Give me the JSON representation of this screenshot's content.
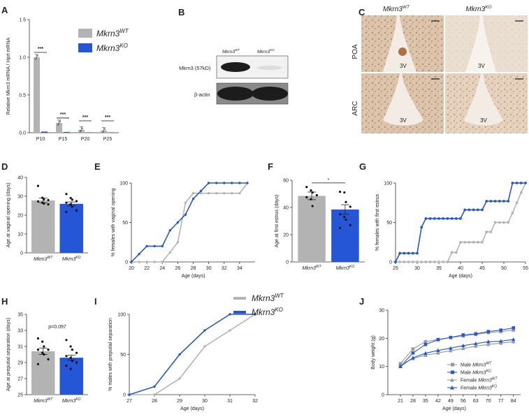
{
  "colors": {
    "wt": "#b3b3b3",
    "ko": "#2456d6",
    "wtMarker": "#9a9a9a",
    "blot": "#1c1c1c",
    "ihcBg": "#e9dccd",
    "stain": "#a86a3a"
  },
  "panels": {
    "A": "A",
    "B": "B",
    "C": "C",
    "D": "D",
    "E": "E",
    "F": "F",
    "G": "G",
    "H": "H",
    "I": "I",
    "J": "J"
  },
  "legend": {
    "wt_base": "Mkrn3",
    "wt_sup": "WT",
    "ko_base": "Mkrn3",
    "ko_sup": "KO"
  },
  "blot": {
    "lane_wt_base": "Mkrn3",
    "lane_wt_sup": "WT",
    "lane_ko_base": "Mkrn3",
    "lane_ko_sup": "KO",
    "band1": "Mkrn3 (57kD)",
    "band2": "β-actin"
  },
  "ihc": {
    "col1_base": "Mkrn3",
    "col1_sup": "WT",
    "col2_base": "Mkrn3",
    "col2_sup": "KO",
    "row1": "POA",
    "row2": "ARC",
    "ventricle": "3V"
  },
  "annotations": {
    "sig3": "***",
    "sig1": "*",
    "pval": "p=0.097"
  },
  "chart_data": [
    {
      "id": "A",
      "type": "bar",
      "title": "",
      "ylabel": "Relative Mkrn3 mRNA / Hprt mRNA",
      "xlabel": "",
      "categories": [
        "P10",
        "P15",
        "P20",
        "P25"
      ],
      "ylim": [
        0,
        1.5
      ],
      "yticks": [
        "0.0",
        "0.5",
        "1.0",
        "1.5"
      ],
      "ytick_values": [
        0,
        0.5,
        1,
        1.5
      ],
      "series": [
        {
          "name": "Mkrn3WT",
          "values": [
            1.0,
            0.13,
            0.04,
            0.03
          ]
        },
        {
          "name": "Mkrn3KO",
          "values": [
            0.015,
            0.01,
            0.005,
            0.005
          ]
        }
      ],
      "significance": [
        "***",
        "***",
        "***",
        "***"
      ]
    },
    {
      "id": "D",
      "type": "bar",
      "ylabel": "Age at vaginal opening (days)",
      "xlabel": "",
      "categories": [
        "Mkrn3WT",
        "Mkrn3KO"
      ],
      "ylim": [
        0,
        40
      ],
      "yticks": [
        "0",
        "10",
        "20",
        "30",
        "40"
      ],
      "ytick_values": [
        0,
        10,
        20,
        30,
        40
      ],
      "values": [
        27.8,
        26.0
      ],
      "sem": [
        1.2,
        1.0
      ],
      "points": [
        [
          35.5,
          29.2,
          28.4,
          28,
          27.3,
          26.6,
          26.1,
          25.7
        ],
        [
          31.2,
          29.1,
          28.2,
          27.4,
          26.6,
          25.8,
          24.5,
          22.5,
          21.7
        ]
      ]
    },
    {
      "id": "E",
      "type": "line",
      "ylabel": "% females with vaginal opening",
      "xlabel": "Age (days)",
      "xlim": [
        20,
        36
      ],
      "xticks": [
        "20",
        "22",
        "24",
        "26",
        "28",
        "30",
        "32",
        "34"
      ],
      "xtick_values": [
        20,
        22,
        24,
        26,
        28,
        30,
        32,
        34
      ],
      "ylim": [
        0,
        100
      ],
      "yticks": [
        "0",
        "50",
        "100"
      ],
      "ytick_values": [
        0,
        50,
        100
      ],
      "series": [
        {
          "name": "Mkrn3WT",
          "x": [
            20,
            21,
            22,
            23,
            24,
            25,
            26,
            27,
            28,
            29,
            30,
            31,
            32,
            33,
            34,
            35
          ],
          "y": [
            0,
            0,
            0,
            0,
            0,
            12,
            25,
            75,
            87,
            87,
            87,
            87,
            87,
            87,
            87,
            100
          ]
        },
        {
          "name": "Mkrn3KO",
          "x": [
            20,
            21,
            22,
            23,
            24,
            25,
            26,
            27,
            28,
            29,
            30,
            31,
            32,
            33,
            34,
            35
          ],
          "y": [
            0,
            10,
            20,
            20,
            20,
            40,
            50,
            60,
            80,
            90,
            100,
            100,
            100,
            100,
            100,
            100
          ]
        }
      ]
    },
    {
      "id": "F",
      "type": "bar",
      "ylabel": "Age at first estrus (days)",
      "xlabel": "",
      "categories": [
        "Mkrn3WT",
        "Mkrn3KO"
      ],
      "ylim": [
        0,
        60
      ],
      "yticks": [
        "0",
        "20",
        "40",
        "60"
      ],
      "ytick_values": [
        0,
        20,
        40,
        60
      ],
      "values": [
        48.5,
        38.5
      ],
      "sem": [
        2.8,
        3.5
      ],
      "points": [
        [
          55,
          52.5,
          51,
          49,
          47.5,
          46,
          41
        ],
        [
          51.5,
          51,
          44,
          40.5,
          35,
          33,
          31,
          27,
          25
        ]
      ],
      "significance": "*"
    },
    {
      "id": "G",
      "type": "line",
      "ylabel": "% females with first estrus",
      "xlabel": "Age (days)",
      "xlim": [
        25,
        55
      ],
      "xticks": [
        "25",
        "30",
        "35",
        "40",
        "45",
        "50",
        "55"
      ],
      "xtick_values": [
        25,
        30,
        35,
        40,
        45,
        50,
        55
      ],
      "ylim": [
        0,
        100
      ],
      "yticks": [
        "0",
        "50",
        "100"
      ],
      "ytick_values": [
        0,
        50,
        100
      ],
      "series": [
        {
          "name": "Mkrn3WT",
          "x": [
            25,
            26,
            27,
            28,
            29,
            30,
            31,
            32,
            33,
            34,
            35,
            36,
            37,
            38,
            39,
            40,
            41,
            42,
            43,
            44,
            45,
            46,
            47,
            48,
            49,
            50,
            51,
            52,
            53,
            54,
            55
          ],
          "y": [
            0,
            0,
            0,
            0,
            0,
            0,
            0,
            0,
            0,
            0,
            0,
            0,
            0,
            12,
            12,
            25,
            25,
            25,
            25,
            25,
            25,
            38,
            38,
            50,
            50,
            50,
            50,
            62,
            75,
            88,
            100
          ]
        },
        {
          "name": "Mkrn3KO",
          "x": [
            25,
            26,
            27,
            28,
            29,
            30,
            31,
            32,
            33,
            34,
            35,
            36,
            37,
            38,
            39,
            40,
            41,
            42,
            43,
            44,
            45,
            46,
            47,
            48,
            49,
            50,
            51,
            52,
            53,
            54,
            55
          ],
          "y": [
            0,
            11,
            11,
            11,
            11,
            11,
            44,
            55,
            55,
            55,
            55,
            55,
            55,
            55,
            55,
            55,
            66,
            66,
            66,
            66,
            66,
            77,
            77,
            77,
            77,
            77,
            77,
            100,
            100,
            100,
            100
          ]
        }
      ]
    },
    {
      "id": "H",
      "type": "bar",
      "ylabel": "Age at preputial separation (days)",
      "xlabel": "",
      "categories": [
        "Mkrn3WT",
        "Mkrn3KO"
      ],
      "ylim": [
        25,
        35
      ],
      "yticks": [
        "25",
        "27",
        "29",
        "31",
        "33",
        "35"
      ],
      "ytick_values": [
        25,
        27,
        29,
        31,
        33,
        35
      ],
      "values": [
        30.4,
        29.6
      ],
      "sem": [
        0.4,
        0.3
      ],
      "points": [
        [
          32,
          31.6,
          31,
          30.6,
          30.6,
          30.2,
          30,
          29.4,
          28.8
        ],
        [
          31.8,
          31,
          30.6,
          30.2,
          29.8,
          29.6,
          29.2,
          29,
          28.6,
          28.2
        ]
      ],
      "annotation": "p=0.097"
    },
    {
      "id": "I",
      "type": "line",
      "ylabel": "% males with preputial separation",
      "xlabel": "Age (days)",
      "xlim": [
        27,
        32
      ],
      "xticks": [
        "27",
        "28",
        "29",
        "30",
        "31",
        "32"
      ],
      "xtick_values": [
        27,
        28,
        29,
        30,
        31,
        32
      ],
      "ylim": [
        0,
        100
      ],
      "yticks": [
        "0",
        "50",
        "100"
      ],
      "ytick_values": [
        0,
        50,
        100
      ],
      "series": [
        {
          "name": "Mkrn3WT",
          "x": [
            27,
            28,
            29,
            30,
            31,
            32
          ],
          "y": [
            0,
            0,
            20,
            60,
            80,
            100
          ]
        },
        {
          "name": "Mkrn3KO",
          "x": [
            27,
            28,
            29,
            30,
            31,
            32
          ],
          "y": [
            0,
            10,
            50,
            80,
            100,
            100
          ]
        }
      ]
    },
    {
      "id": "J",
      "type": "line",
      "ylabel": "Body weight (g)",
      "xlabel": "Age (days)",
      "xlim": [
        14,
        88
      ],
      "xticks": [
        "21",
        "28",
        "35",
        "42",
        "49",
        "56",
        "63",
        "70",
        "77",
        "84"
      ],
      "xtick_values": [
        21,
        28,
        35,
        42,
        49,
        56,
        63,
        70,
        77,
        84
      ],
      "ylim": [
        0,
        30
      ],
      "yticks": [
        "0",
        "10",
        "20",
        "30"
      ],
      "ytick_values": [
        0,
        10,
        20,
        30
      ],
      "series": [
        {
          "name": "Male Mkrn3WT",
          "x": [
            21,
            28,
            35,
            42,
            49,
            56,
            63,
            70,
            77,
            84
          ],
          "y": [
            11,
            16.2,
            18.8,
            19.6,
            20.3,
            20.8,
            21.4,
            22,
            22.4,
            22.9
          ]
        },
        {
          "name": "Male Mkrn3KO",
          "x": [
            21,
            28,
            35,
            42,
            49,
            56,
            63,
            70,
            77,
            84
          ],
          "y": [
            10,
            14.8,
            17.8,
            19.5,
            20.3,
            21.2,
            21.6,
            22.4,
            22.9,
            23.7
          ]
        },
        {
          "name": "Female Mkrn3WT",
          "x": [
            21,
            28,
            35,
            42,
            49,
            56,
            63,
            70,
            77,
            84
          ],
          "y": [
            10.5,
            12.8,
            14,
            14.8,
            15.6,
            16.4,
            17.2,
            17.8,
            18.3,
            18.8
          ]
        },
        {
          "name": "Female Mkrn3KO",
          "x": [
            21,
            28,
            35,
            42,
            49,
            56,
            63,
            70,
            77,
            84
          ],
          "y": [
            10,
            13.1,
            14.7,
            15.7,
            16.5,
            17.4,
            18.1,
            18.8,
            19,
            19.6
          ]
        }
      ],
      "legend_labels": [
        {
          "base": "Male Mkrn3",
          "sup": "WT"
        },
        {
          "base": "Male Mkrn3",
          "sup": "KO"
        },
        {
          "base": "Female Mkrn3",
          "sup": "WT"
        },
        {
          "base": "Female Mkrn3",
          "sup": "KO"
        }
      ],
      "legend_position": "bottom-right"
    }
  ]
}
